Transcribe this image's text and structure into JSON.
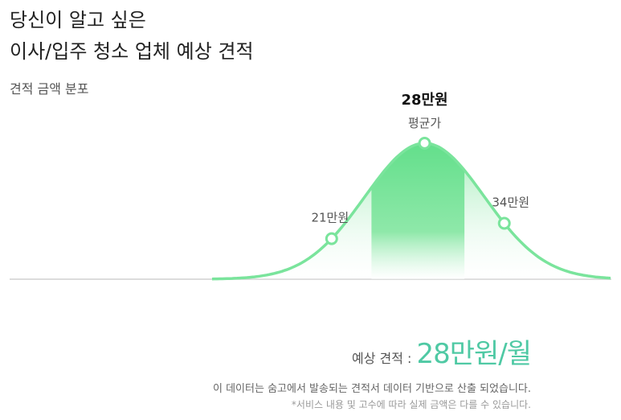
{
  "header": {
    "title_line1": "당신이 알고 싶은",
    "title_line2": "이사/입주 청소 업체 예상 견적",
    "subtitle": "견적 금액 분포"
  },
  "colors": {
    "curve": "#7ae49c",
    "fill_center": "#6ee393",
    "fill_side": "#d9f7e2",
    "estimate_accent": "#4fc9a4",
    "baseline": "#d0d0d0"
  },
  "chart_data": {
    "type": "area",
    "title": "견적 금액 분포",
    "distribution": "normal",
    "unit": "만원",
    "markers": [
      {
        "key": "low",
        "value": 21,
        "label": "21만원"
      },
      {
        "key": "avg",
        "value": 28,
        "label": "28만원",
        "sublabel": "평균가"
      },
      {
        "key": "high",
        "value": 34,
        "label": "34만원"
      }
    ],
    "highlight_range": [
      24,
      31
    ],
    "xlim": [
      12,
      42
    ]
  },
  "estimate": {
    "label": "예상 견적 :",
    "value": "28만원/월"
  },
  "footer": {
    "note1": "이 데이터는 숨고에서 발송되는 견적서 데이터 기반으로 산출 되었습니다.",
    "note2": "*서비스 내용 및 고수에 따라 실제 금액은 다를 수 있습니다."
  }
}
